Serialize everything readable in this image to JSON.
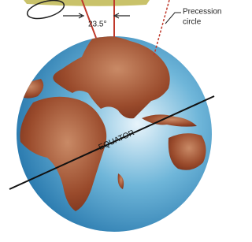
{
  "labels": {
    "angle": "23.5°",
    "precession": [
      "Precession",
      "circle"
    ],
    "equator": "EQUATOR"
  }
}
